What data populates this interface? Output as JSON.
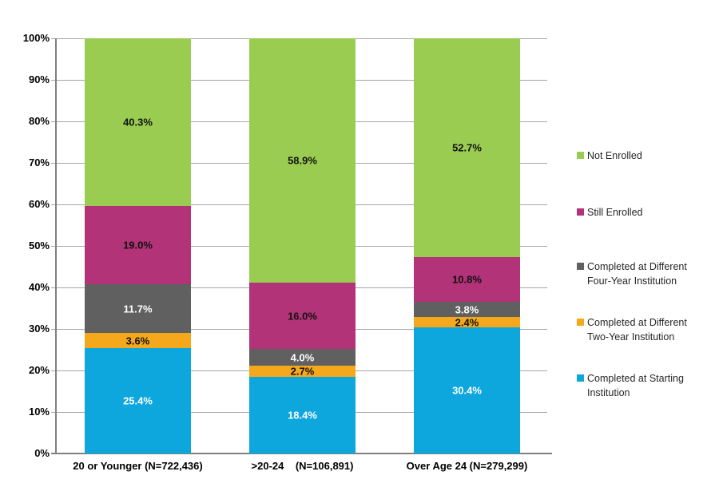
{
  "chart_data": {
    "type": "bar",
    "stacked": true,
    "percent_stacked": true,
    "title": "",
    "xlabel": "",
    "ylabel": "",
    "grid": "horizontal",
    "legend_position": "right",
    "categories": [
      "20 or Younger (N=722,436)",
      ">20-24    (N=106,891)",
      "Over Age 24 (N=279,299)"
    ],
    "series": [
      {
        "name": "Completed at Starting Institution",
        "color": "#0da6dd",
        "label_color": "#ffffff",
        "values": [
          25.4,
          18.4,
          30.4
        ],
        "labels": [
          "25.4%",
          "18.4%",
          "30.4%"
        ]
      },
      {
        "name": "Completed at Different Two-Year Institution",
        "color": "#f6a81c",
        "label_color": "#111111",
        "values": [
          3.6,
          2.7,
          2.4
        ],
        "labels": [
          "3.6%",
          "2.7%",
          "2.4%"
        ]
      },
      {
        "name": "Completed at Different Four-Year Institution",
        "color": "#606060",
        "label_color": "#ffffff",
        "values": [
          11.7,
          4.0,
          3.8
        ],
        "labels": [
          "11.7%",
          "4.0%",
          "3.8%"
        ]
      },
      {
        "name": "Still Enrolled",
        "color": "#b23377",
        "label_color": "#111111",
        "values": [
          19.0,
          16.0,
          10.8
        ],
        "labels": [
          "19.0%",
          "16.0%",
          "10.8%"
        ]
      },
      {
        "name": "Not Enrolled",
        "color": "#9acc52",
        "label_color": "#111111",
        "values": [
          40.3,
          58.9,
          52.7
        ],
        "labels": [
          "40.3%",
          "58.9%",
          "52.7%"
        ]
      }
    ],
    "legend": [
      {
        "label": "Not Enrolled",
        "color": "#9acc52"
      },
      {
        "label": "Still Enrolled",
        "color": "#b23377"
      },
      {
        "label": "Completed at Different Four-Year Institution",
        "color": "#606060"
      },
      {
        "label": "Completed at Different Two-Year Institution",
        "color": "#f6a81c"
      },
      {
        "label": "Completed at Starting Institution",
        "color": "#0da6dd"
      }
    ],
    "y_axis": {
      "min": 0,
      "max": 100,
      "step": 10,
      "tick_labels": [
        "0%",
        "10%",
        "20%",
        "30%",
        "40%",
        "50%",
        "60%",
        "70%",
        "80%",
        "90%",
        "100%"
      ]
    },
    "colors": {
      "gridline": "#a6a6a6",
      "axis": "#808080",
      "background": "#ffffff"
    }
  }
}
